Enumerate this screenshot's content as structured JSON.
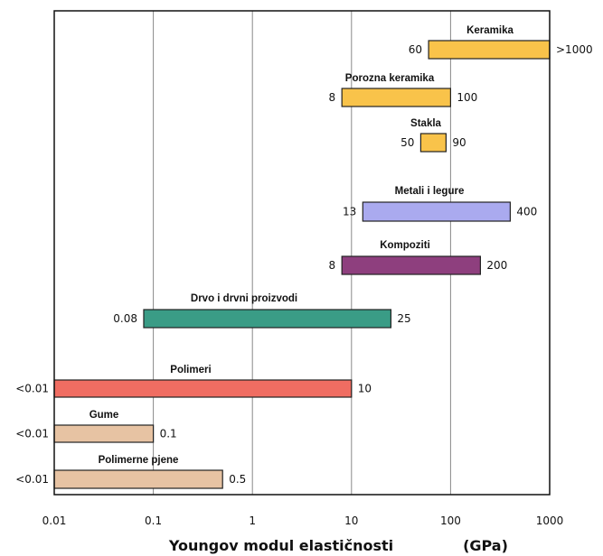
{
  "chart_data": {
    "type": "bar",
    "orientation": "horizontal-range",
    "x_scale": "log",
    "xlim": [
      0.01,
      1000
    ],
    "xlabel": "Youngov modul elastičnosti",
    "xunit": "(GPa)",
    "xticks": [
      0.01,
      0.1,
      1,
      10,
      100,
      1000
    ],
    "xtick_labels": [
      "0.01",
      "0.1",
      "1",
      "10",
      "100",
      "1000"
    ],
    "grid": "vertical",
    "bars": [
      {
        "name": "Keramika",
        "low": 60,
        "high": 1000,
        "low_label": "60",
        "high_label": ">1000",
        "color": "#f9c34a"
      },
      {
        "name": "Porozna keramika",
        "low": 8,
        "high": 100,
        "low_label": "8",
        "high_label": "100",
        "color": "#f9c34a"
      },
      {
        "name": "Stakla",
        "low": 50,
        "high": 90,
        "low_label": "50",
        "high_label": "90",
        "color": "#f9c34a"
      },
      {
        "name": "Metali i legure",
        "low": 13,
        "high": 400,
        "low_label": "13",
        "high_label": "400",
        "color": "#aaaaef"
      },
      {
        "name": "Kompoziti",
        "low": 8,
        "high": 200,
        "low_label": "8",
        "high_label": "200",
        "color": "#8e3f7e"
      },
      {
        "name": "Drvo i drvni proizvodi",
        "low": 0.08,
        "high": 25,
        "low_label": "0.08",
        "high_label": "25",
        "color": "#3a9c86"
      },
      {
        "name": "Polimeri",
        "low": 0.01,
        "high": 10,
        "low_label": "<0.01",
        "high_label": "10",
        "color": "#f06d62"
      },
      {
        "name": "Gume",
        "low": 0.01,
        "high": 0.1,
        "low_label": "<0.01",
        "high_label": "0.1",
        "color": "#e7c3a3"
      },
      {
        "name": "Polimerne pjene",
        "low": 0.01,
        "high": 0.5,
        "low_label": "<0.01",
        "high_label": "0.5",
        "color": "#e7c3a3"
      }
    ]
  }
}
